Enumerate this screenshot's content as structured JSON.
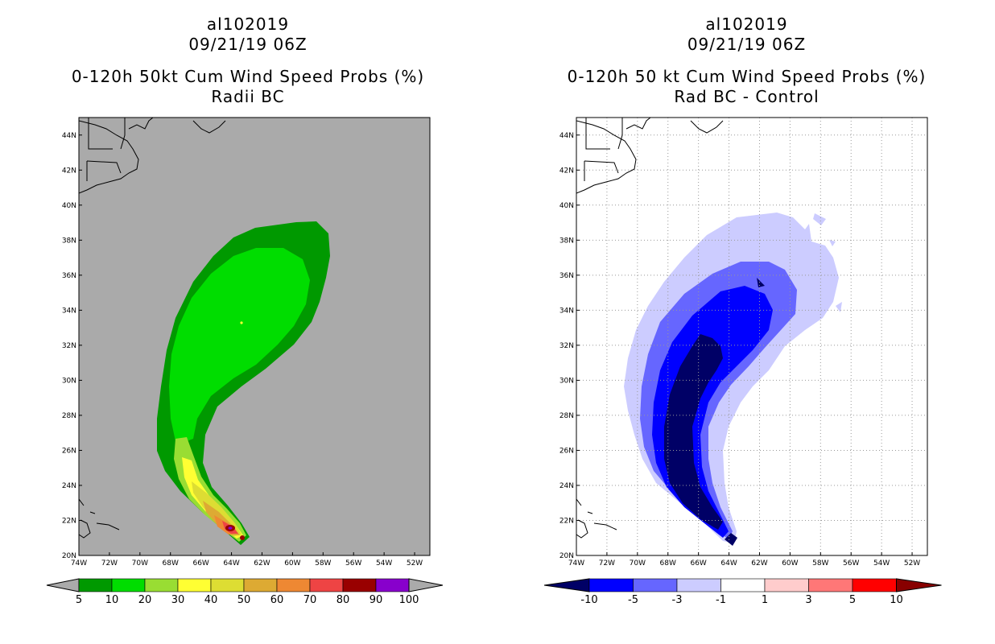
{
  "left_panel": {
    "storm_id": "al102019",
    "datetime": "09/21/19 06Z",
    "title": "0-120h 50kt Cum Wind Speed Probs (%)",
    "subtitle": "Radii BC",
    "colorbar_labels": [
      "5",
      "10",
      "20",
      "30",
      "40",
      "50",
      "60",
      "70",
      "80",
      "90",
      "100"
    ],
    "colorbar_colors": [
      "#009900",
      "#00dd00",
      "#99dd33",
      "#ffff33",
      "#dddd33",
      "#ddaa33",
      "#ee8833",
      "#ee4444",
      "#990000",
      "#8800cc"
    ]
  },
  "right_panel": {
    "storm_id": "al102019",
    "datetime": "09/21/19 06Z",
    "title": "0-120h 50 kt Cum Wind Speed Probs (%)",
    "subtitle": "Rad BC - Control",
    "colorbar_labels": [
      "-10",
      "-5",
      "-3",
      "-1",
      "1",
      "3",
      "5",
      "10"
    ],
    "colorbar_colors": [
      "#0000ff",
      "#6666ff",
      "#ccccff",
      "#ffffff",
      "#ffcccc",
      "#ff7777",
      "#ff0000"
    ],
    "colorbar_end_colors": [
      "#000066",
      "#880000"
    ]
  },
  "lat_labels": [
    "44N",
    "42N",
    "40N",
    "38N",
    "36N",
    "34N",
    "32N",
    "30N",
    "28N",
    "26N",
    "24N",
    "22N",
    "20N"
  ],
  "lon_labels": [
    "74W",
    "72W",
    "70W",
    "68W",
    "66W",
    "64W",
    "62W",
    "60W",
    "58W",
    "56W",
    "54W",
    "52W"
  ],
  "colors": {
    "land_mask": "#aaaaaa"
  }
}
